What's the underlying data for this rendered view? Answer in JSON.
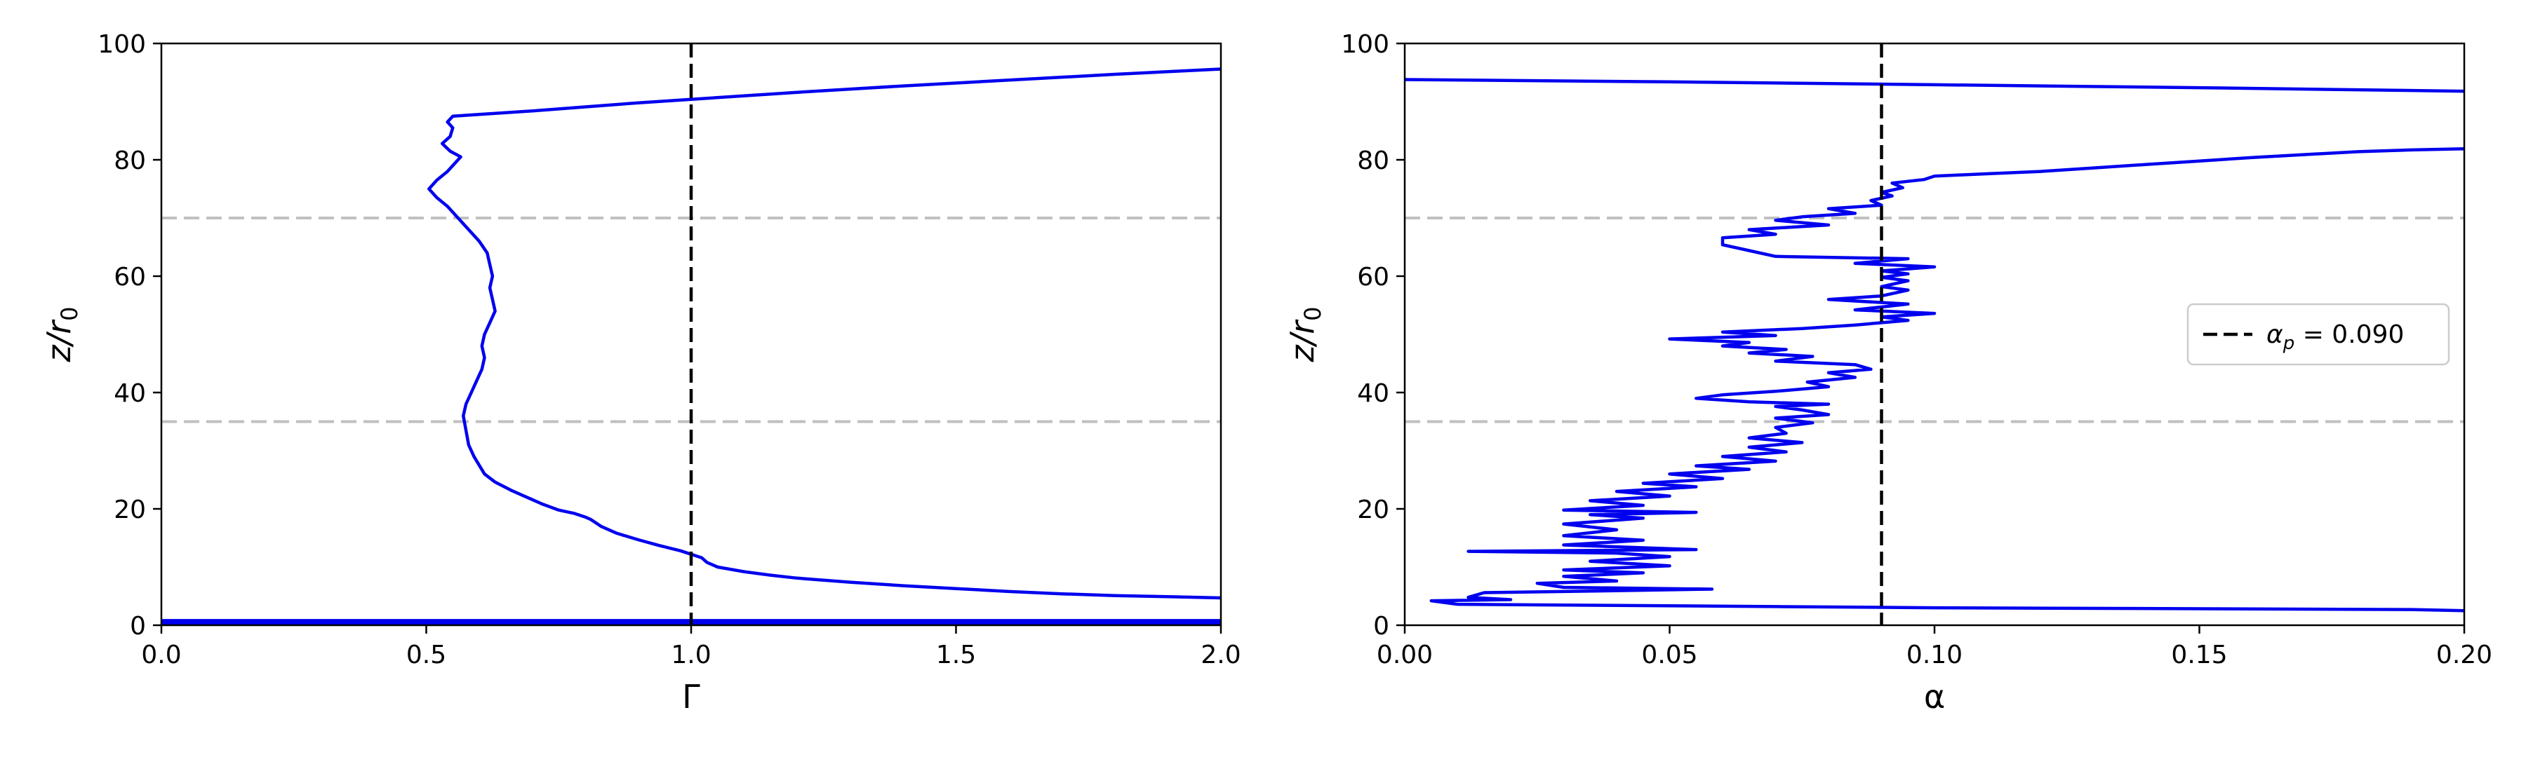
{
  "chart_data": [
    {
      "type": "line",
      "xlabel": "Γ",
      "ylabel": "z/r",
      "ylabel_sub": "0",
      "xlim": [
        0.0,
        2.0
      ],
      "ylim": [
        0,
        100
      ],
      "xticks": [
        "0.0",
        "0.5",
        "1.0",
        "1.5",
        "2.0"
      ],
      "xtick_values": [
        0.0,
        0.5,
        1.0,
        1.5,
        2.0
      ],
      "yticks": [
        "0",
        "20",
        "40",
        "60",
        "80",
        "100"
      ],
      "ytick_values": [
        0,
        20,
        40,
        60,
        80,
        100
      ],
      "grid": false,
      "legend": null,
      "colors": {
        "series": "#0000ee",
        "reference": "#000000",
        "band": "#c0c0c0"
      },
      "reference_vlines": [
        {
          "x": 1.0,
          "style": "dashed"
        }
      ],
      "reference_hlines": [
        {
          "y": 35,
          "style": "dashed"
        },
        {
          "y": 70,
          "style": "dashed"
        }
      ],
      "series": [
        {
          "points": [
            [
              0.0,
              0.3
            ],
            [
              2.0,
              0.3
            ],
            [
              2.0,
              0.8
            ],
            [
              0.0,
              0.8
            ]
          ]
        },
        {
          "points": [
            [
              2.0,
              4.7
            ],
            [
              1.9,
              4.9
            ],
            [
              1.8,
              5.1
            ],
            [
              1.7,
              5.4
            ],
            [
              1.6,
              5.8
            ],
            [
              1.5,
              6.3
            ],
            [
              1.4,
              6.8
            ],
            [
              1.3,
              7.4
            ],
            [
              1.2,
              8.1
            ],
            [
              1.15,
              8.6
            ],
            [
              1.1,
              9.2
            ],
            [
              1.05,
              10.0
            ],
            [
              1.03,
              10.8
            ],
            [
              1.02,
              11.6
            ],
            [
              1.0,
              12.2
            ],
            [
              0.98,
              12.8
            ],
            [
              0.94,
              13.7
            ],
            [
              0.9,
              14.7
            ],
            [
              0.86,
              15.8
            ],
            [
              0.83,
              17.0
            ],
            [
              0.81,
              18.2
            ],
            [
              0.8,
              18.6
            ],
            [
              0.78,
              19.2
            ],
            [
              0.75,
              19.8
            ],
            [
              0.72,
              20.8
            ],
            [
              0.69,
              22.0
            ],
            [
              0.66,
              23.2
            ],
            [
              0.63,
              24.6
            ],
            [
              0.61,
              26.0
            ],
            [
              0.6,
              27.5
            ],
            [
              0.59,
              29.0
            ],
            [
              0.58,
              31.0
            ],
            [
              0.575,
              33.5
            ],
            [
              0.57,
              36.0
            ],
            [
              0.575,
              38.0
            ],
            [
              0.585,
              40.0
            ],
            [
              0.595,
              42.0
            ],
            [
              0.605,
              44.0
            ],
            [
              0.61,
              46.0
            ],
            [
              0.605,
              48.0
            ],
            [
              0.61,
              50.0
            ],
            [
              0.62,
              52.0
            ],
            [
              0.63,
              54.0
            ],
            [
              0.625,
              56.0
            ],
            [
              0.62,
              58.0
            ],
            [
              0.625,
              60.0
            ],
            [
              0.62,
              62.0
            ],
            [
              0.615,
              64.0
            ],
            [
              0.6,
              66.0
            ],
            [
              0.58,
              68.0
            ],
            [
              0.56,
              70.0
            ],
            [
              0.54,
              72.0
            ],
            [
              0.52,
              73.5
            ],
            [
              0.505,
              75.0
            ],
            [
              0.52,
              76.5
            ],
            [
              0.54,
              78.0
            ],
            [
              0.555,
              79.5
            ],
            [
              0.565,
              80.5
            ],
            [
              0.545,
              81.5
            ],
            [
              0.53,
              82.8
            ],
            [
              0.545,
              84.0
            ],
            [
              0.55,
              85.5
            ],
            [
              0.54,
              86.5
            ],
            [
              0.55,
              87.5
            ],
            [
              0.6,
              87.8
            ],
            [
              0.7,
              88.4
            ],
            [
              0.8,
              89.1
            ],
            [
              0.9,
              89.8
            ],
            [
              1.0,
              90.4
            ],
            [
              1.2,
              91.6
            ],
            [
              1.4,
              92.7
            ],
            [
              1.6,
              93.7
            ],
            [
              1.8,
              94.7
            ],
            [
              2.0,
              95.6
            ]
          ]
        }
      ]
    },
    {
      "type": "line",
      "xlabel": "α",
      "ylabel": "z/r",
      "ylabel_sub": "0",
      "xlim": [
        0.0,
        0.2
      ],
      "ylim": [
        0,
        100
      ],
      "xticks": [
        "0.00",
        "0.05",
        "0.10",
        "0.15",
        "0.20"
      ],
      "xtick_values": [
        0.0,
        0.05,
        0.1,
        0.15,
        0.2
      ],
      "yticks": [
        "0",
        "20",
        "40",
        "60",
        "80",
        "100"
      ],
      "ytick_values": [
        0,
        20,
        40,
        60,
        80,
        100
      ],
      "grid": false,
      "legend": {
        "placement": "center-right",
        "entries": [
          {
            "label_main": "α",
            "label_sub": "p",
            "label_rest": " = 0.090",
            "style": "dashed",
            "color": "#000000"
          }
        ]
      },
      "colors": {
        "series": "#0000ee",
        "reference": "#000000",
        "band": "#c0c0c0"
      },
      "reference_vlines": [
        {
          "x": 0.09,
          "style": "dashed"
        }
      ],
      "reference_hlines": [
        {
          "y": 35,
          "style": "dashed"
        },
        {
          "y": 70,
          "style": "dashed"
        }
      ],
      "series": [
        {
          "points": [
            [
              0.2,
              2.5
            ],
            [
              0.19,
              2.7
            ],
            [
              0.1,
              3.0
            ],
            [
              0.07,
              3.2
            ],
            [
              0.01,
              3.6
            ],
            [
              0.005,
              4.2
            ],
            [
              0.02,
              4.4
            ],
            [
              0.012,
              4.8
            ],
            [
              0.015,
              5.6
            ],
            [
              0.03,
              5.8
            ],
            [
              0.058,
              6.2
            ],
            [
              0.03,
              6.5
            ],
            [
              0.025,
              7.2
            ],
            [
              0.04,
              7.6
            ],
            [
              0.03,
              8.4
            ],
            [
              0.045,
              9.0
            ],
            [
              0.03,
              9.5
            ],
            [
              0.05,
              10.2
            ],
            [
              0.035,
              11.0
            ],
            [
              0.05,
              11.8
            ],
            [
              0.04,
              12.4
            ],
            [
              0.012,
              12.7
            ],
            [
              0.055,
              13.0
            ],
            [
              0.03,
              13.8
            ],
            [
              0.045,
              14.6
            ],
            [
              0.03,
              15.4
            ],
            [
              0.04,
              16.4
            ],
            [
              0.03,
              17.4
            ],
            [
              0.045,
              18.4
            ],
            [
              0.035,
              19.0
            ],
            [
              0.055,
              19.4
            ],
            [
              0.03,
              19.8
            ],
            [
              0.045,
              20.6
            ],
            [
              0.035,
              21.4
            ],
            [
              0.05,
              22.2
            ],
            [
              0.04,
              23.0
            ],
            [
              0.055,
              23.8
            ],
            [
              0.045,
              24.4
            ],
            [
              0.06,
              25.2
            ],
            [
              0.05,
              26.0
            ],
            [
              0.065,
              26.8
            ],
            [
              0.055,
              27.4
            ],
            [
              0.07,
              28.2
            ],
            [
              0.06,
              29.0
            ],
            [
              0.072,
              29.8
            ],
            [
              0.065,
              30.6
            ],
            [
              0.075,
              31.4
            ],
            [
              0.065,
              32.2
            ],
            [
              0.072,
              33.0
            ],
            [
              0.07,
              34.0
            ],
            [
              0.077,
              34.8
            ],
            [
              0.07,
              35.6
            ],
            [
              0.08,
              36.2
            ],
            [
              0.075,
              37.0
            ],
            [
              0.07,
              37.6
            ],
            [
              0.08,
              38.0
            ],
            [
              0.065,
              38.4
            ],
            [
              0.055,
              39.0
            ],
            [
              0.06,
              39.6
            ],
            [
              0.07,
              40.2
            ],
            [
              0.08,
              41.0
            ],
            [
              0.076,
              41.8
            ],
            [
              0.085,
              42.6
            ],
            [
              0.08,
              43.4
            ],
            [
              0.088,
              44.0
            ],
            [
              0.085,
              44.8
            ],
            [
              0.07,
              45.4
            ],
            [
              0.077,
              46.2
            ],
            [
              0.065,
              46.8
            ],
            [
              0.072,
              47.4
            ],
            [
              0.06,
              48.0
            ],
            [
              0.065,
              48.6
            ],
            [
              0.05,
              49.2
            ],
            [
              0.07,
              49.8
            ],
            [
              0.06,
              50.4
            ],
            [
              0.075,
              51.0
            ],
            [
              0.085,
              51.6
            ],
            [
              0.095,
              52.4
            ],
            [
              0.09,
              53.0
            ],
            [
              0.1,
              53.6
            ],
            [
              0.085,
              54.2
            ],
            [
              0.095,
              55.2
            ],
            [
              0.08,
              56.0
            ],
            [
              0.09,
              56.6
            ],
            [
              0.095,
              57.6
            ],
            [
              0.09,
              58.2
            ],
            [
              0.095,
              59.2
            ],
            [
              0.09,
              59.8
            ],
            [
              0.095,
              60.4
            ],
            [
              0.09,
              60.9
            ],
            [
              0.1,
              61.6
            ],
            [
              0.085,
              62.2
            ],
            [
              0.095,
              63.0
            ],
            [
              0.07,
              63.4
            ],
            [
              0.065,
              64.4
            ],
            [
              0.06,
              65.4
            ],
            [
              0.06,
              66.6
            ],
            [
              0.07,
              67.2
            ],
            [
              0.065,
              68.0
            ],
            [
              0.08,
              68.8
            ],
            [
              0.07,
              69.6
            ],
            [
              0.075,
              70.2
            ],
            [
              0.085,
              70.8
            ],
            [
              0.08,
              71.6
            ],
            [
              0.09,
              72.2
            ],
            [
              0.088,
              73.0
            ],
            [
              0.092,
              73.8
            ],
            [
              0.09,
              74.4
            ],
            [
              0.094,
              75.2
            ],
            [
              0.092,
              76.0
            ],
            [
              0.098,
              76.6
            ],
            [
              0.1,
              77.2
            ],
            [
              0.11,
              77.6
            ],
            [
              0.12,
              78.0
            ],
            [
              0.13,
              78.6
            ],
            [
              0.14,
              79.2
            ],
            [
              0.15,
              79.8
            ],
            [
              0.16,
              80.4
            ],
            [
              0.17,
              80.9
            ],
            [
              0.18,
              81.4
            ],
            [
              0.19,
              81.7
            ],
            [
              0.2,
              81.9
            ]
          ]
        },
        {
          "points": [
            [
              0.0,
              93.8
            ],
            [
              0.05,
              93.4
            ],
            [
              0.1,
              92.9
            ],
            [
              0.15,
              92.4
            ],
            [
              0.2,
              91.8
            ]
          ]
        }
      ]
    }
  ]
}
